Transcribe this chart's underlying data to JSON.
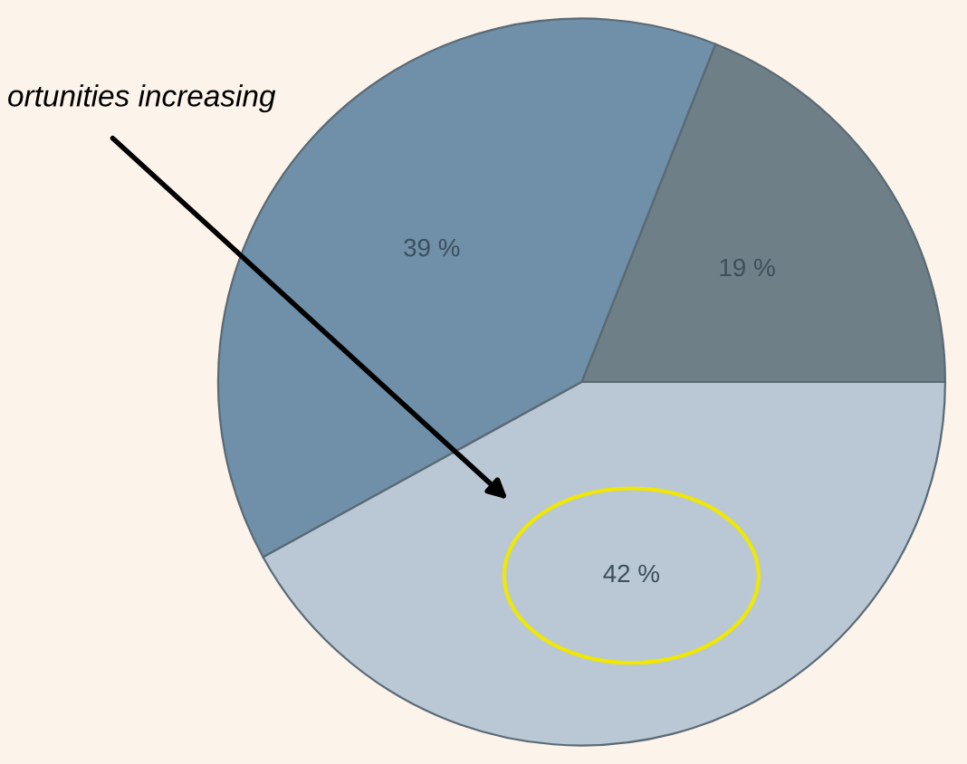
{
  "chart_data": {
    "type": "pie",
    "categories": [
      null,
      null,
      null
    ],
    "values": [
      19,
      39,
      42
    ],
    "colors": [
      "#6f7f88",
      "#6f90a8",
      "#b9c8d4"
    ],
    "value_labels": [
      "19 %",
      "39 %",
      "42 %"
    ],
    "annotations": [
      "ortunities increasing"
    ],
    "legend": false
  }
}
